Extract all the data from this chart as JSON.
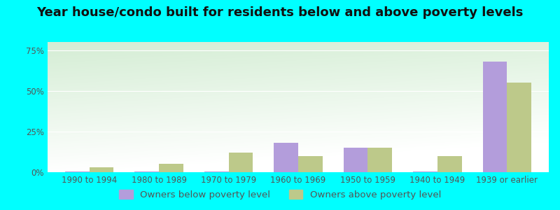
{
  "title": "Year house/condo built for residents below and above poverty levels",
  "categories": [
    "1990 to 1994",
    "1980 to 1989",
    "1970 to 1979",
    "1960 to 1969",
    "1950 to 1959",
    "1940 to 1949",
    "1939 or earlier"
  ],
  "below_poverty": [
    0.5,
    0.5,
    0.5,
    18.0,
    15.0,
    0.5,
    68.0
  ],
  "above_poverty": [
    3.0,
    5.0,
    12.0,
    10.0,
    15.0,
    10.0,
    55.0
  ],
  "below_color": "#b39ddb",
  "above_color": "#bdc98a",
  "outer_bg": "#00ffff",
  "ylim": [
    0,
    80
  ],
  "yticks": [
    0,
    25,
    50,
    75
  ],
  "ytick_labels": [
    "0%",
    "25%",
    "50%",
    "75%"
  ],
  "bar_width": 0.35,
  "legend_below": "Owners below poverty level",
  "legend_above": "Owners above poverty level",
  "title_fontsize": 13,
  "tick_fontsize": 8.5,
  "legend_fontsize": 9.5
}
